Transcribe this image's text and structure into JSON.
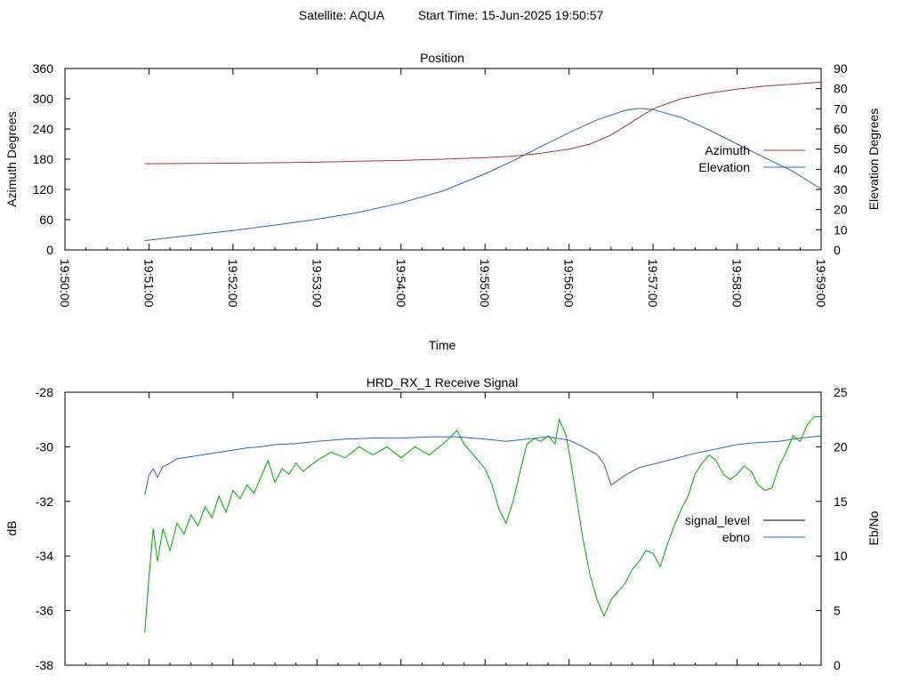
{
  "header": {
    "satellite_label": "Satellite: AQUA",
    "start_time_label": "Start Time: 15-Jun-2025 19:50:57"
  },
  "chart_data": [
    {
      "type": "line",
      "title": "Position",
      "xlabel": "Time",
      "ylabel": "Azimuth Degrees",
      "y2label": "Elevation Degrees",
      "x_ticks": [
        "19:50:00",
        "19:51:00",
        "19:52:00",
        "19:53:00",
        "19:54:00",
        "19:55:00",
        "19:56:00",
        "19:57:00",
        "19:58:00",
        "19:59:00"
      ],
      "xlim": [
        "19:50:00",
        "19:59:00"
      ],
      "ylim": [
        0,
        360
      ],
      "y_ticks": [
        0,
        60,
        120,
        180,
        240,
        300,
        360
      ],
      "y2lim": [
        0,
        90
      ],
      "y2_ticks": [
        0,
        10,
        20,
        30,
        40,
        50,
        60,
        70,
        80,
        90
      ],
      "legend_position": "right",
      "grid": false,
      "series": [
        {
          "name": "Azimuth",
          "axis": "y1",
          "color": "#a33b3b",
          "points": [
            [
              "19:50:57",
              171
            ],
            [
              "19:51:30",
              171.5
            ],
            [
              "19:52:00",
              172
            ],
            [
              "19:52:30",
              173
            ],
            [
              "19:53:00",
              174
            ],
            [
              "19:53:30",
              176
            ],
            [
              "19:54:00",
              177.5
            ],
            [
              "19:54:30",
              180
            ],
            [
              "19:55:00",
              183
            ],
            [
              "19:55:20",
              186
            ],
            [
              "19:55:40",
              192
            ],
            [
              "19:56:00",
              200
            ],
            [
              "19:56:15",
              210
            ],
            [
              "19:56:30",
              228
            ],
            [
              "19:56:45",
              254
            ],
            [
              "19:57:00",
              280
            ],
            [
              "19:57:20",
              300
            ],
            [
              "19:57:40",
              311
            ],
            [
              "19:58:00",
              319
            ],
            [
              "19:58:20",
              325
            ],
            [
              "19:58:40",
              329
            ],
            [
              "19:59:00",
              333
            ]
          ]
        },
        {
          "name": "Elevation",
          "axis": "y2",
          "color": "#3366b0",
          "points": [
            [
              "19:50:57",
              4.6
            ],
            [
              "19:51:30",
              7.3
            ],
            [
              "19:52:00",
              9.6
            ],
            [
              "19:52:30",
              12.3
            ],
            [
              "19:53:00",
              15.2
            ],
            [
              "19:53:30",
              18.6
            ],
            [
              "19:54:00",
              23.3
            ],
            [
              "19:54:30",
              29.3
            ],
            [
              "19:55:00",
              37.7
            ],
            [
              "19:55:20",
              44.2
            ],
            [
              "19:55:40",
              51.3
            ],
            [
              "19:56:00",
              58.2
            ],
            [
              "19:56:20",
              64.5
            ],
            [
              "19:56:40",
              69.2
            ],
            [
              "19:56:50",
              70.2
            ],
            [
              "19:57:00",
              69.6
            ],
            [
              "19:57:20",
              65.7
            ],
            [
              "19:57:40",
              59.5
            ],
            [
              "19:58:00",
              52.5
            ],
            [
              "19:58:20",
              45.6
            ],
            [
              "19:58:40",
              38.9
            ],
            [
              "19:59:00",
              30.2
            ]
          ]
        }
      ]
    },
    {
      "type": "line",
      "title": "HRD_RX_1 Receive Signal",
      "ylabel": "dB",
      "y2label": "Eb/No",
      "xlim": [
        "19:50:00",
        "19:59:00"
      ],
      "ylim": [
        -38,
        -28
      ],
      "y_ticks": [
        -38,
        -36,
        -34,
        -32,
        -30,
        -28
      ],
      "y2lim": [
        0,
        25
      ],
      "y2_ticks": [
        0,
        5,
        10,
        15,
        20,
        25
      ],
      "legend_position": "right",
      "grid": false,
      "series": [
        {
          "name": "signal_level",
          "axis": "y1",
          "color": "#00aa00",
          "legend_color": "#000000",
          "points": [
            [
              "19:50:57",
              -36.8
            ],
            [
              "19:51:00",
              -34.8
            ],
            [
              "19:51:03",
              -33.0
            ],
            [
              "19:51:06",
              -34.2
            ],
            [
              "19:51:10",
              -33.0
            ],
            [
              "19:51:15",
              -33.8
            ],
            [
              "19:51:20",
              -32.8
            ],
            [
              "19:51:25",
              -33.2
            ],
            [
              "19:51:30",
              -32.5
            ],
            [
              "19:51:35",
              -32.9
            ],
            [
              "19:51:40",
              -32.2
            ],
            [
              "19:51:45",
              -32.6
            ],
            [
              "19:51:50",
              -31.8
            ],
            [
              "19:51:55",
              -32.4
            ],
            [
              "19:52:00",
              -31.6
            ],
            [
              "19:52:05",
              -31.9
            ],
            [
              "19:52:10",
              -31.4
            ],
            [
              "19:52:15",
              -31.7
            ],
            [
              "19:52:20",
              -31.1
            ],
            [
              "19:52:25",
              -30.5
            ],
            [
              "19:52:30",
              -31.3
            ],
            [
              "19:52:35",
              -30.8
            ],
            [
              "19:52:40",
              -31.0
            ],
            [
              "19:52:45",
              -30.6
            ],
            [
              "19:52:50",
              -30.9
            ],
            [
              "19:53:00",
              -30.5
            ],
            [
              "19:53:10",
              -30.2
            ],
            [
              "19:53:20",
              -30.4
            ],
            [
              "19:53:30",
              -30.0
            ],
            [
              "19:53:40",
              -30.3
            ],
            [
              "19:53:50",
              -30.0
            ],
            [
              "19:54:00",
              -30.4
            ],
            [
              "19:54:10",
              -30.0
            ],
            [
              "19:54:20",
              -30.3
            ],
            [
              "19:54:30",
              -29.9
            ],
            [
              "19:54:40",
              -29.4
            ],
            [
              "19:54:45",
              -29.9
            ],
            [
              "19:54:50",
              -30.2
            ],
            [
              "19:55:00",
              -30.8
            ],
            [
              "19:55:05",
              -31.4
            ],
            [
              "19:55:10",
              -32.3
            ],
            [
              "19:55:15",
              -32.8
            ],
            [
              "19:55:20",
              -32.0
            ],
            [
              "19:55:25",
              -30.9
            ],
            [
              "19:55:30",
              -29.9
            ],
            [
              "19:55:35",
              -29.7
            ],
            [
              "19:55:40",
              -29.8
            ],
            [
              "19:55:45",
              -29.6
            ],
            [
              "19:55:50",
              -29.9
            ],
            [
              "19:55:53",
              -29.0
            ],
            [
              "19:55:58",
              -29.6
            ],
            [
              "19:56:02",
              -30.8
            ],
            [
              "19:56:06",
              -32.1
            ],
            [
              "19:56:10",
              -33.4
            ],
            [
              "19:56:15",
              -34.7
            ],
            [
              "19:56:20",
              -35.6
            ],
            [
              "19:56:25",
              -36.2
            ],
            [
              "19:56:30",
              -35.6
            ],
            [
              "19:56:35",
              -35.3
            ],
            [
              "19:56:40",
              -35.0
            ],
            [
              "19:56:45",
              -34.5
            ],
            [
              "19:56:50",
              -34.2
            ],
            [
              "19:56:55",
              -33.8
            ],
            [
              "19:57:00",
              -33.9
            ],
            [
              "19:57:05",
              -34.4
            ],
            [
              "19:57:10",
              -33.6
            ],
            [
              "19:57:15",
              -32.9
            ],
            [
              "19:57:20",
              -32.3
            ],
            [
              "19:57:25",
              -31.8
            ],
            [
              "19:57:30",
              -31.0
            ],
            [
              "19:57:35",
              -30.6
            ],
            [
              "19:57:40",
              -30.3
            ],
            [
              "19:57:45",
              -30.5
            ],
            [
              "19:57:50",
              -31.0
            ],
            [
              "19:57:55",
              -31.2
            ],
            [
              "19:58:00",
              -31.0
            ],
            [
              "19:58:05",
              -30.7
            ],
            [
              "19:58:10",
              -30.9
            ],
            [
              "19:58:15",
              -31.4
            ],
            [
              "19:58:20",
              -31.6
            ],
            [
              "19:58:25",
              -31.5
            ],
            [
              "19:58:30",
              -30.7
            ],
            [
              "19:58:35",
              -30.2
            ],
            [
              "19:58:40",
              -29.6
            ],
            [
              "19:58:45",
              -29.8
            ],
            [
              "19:58:50",
              -29.2
            ],
            [
              "19:58:55",
              -28.9
            ],
            [
              "19:59:00",
              -28.9
            ]
          ]
        },
        {
          "name": "ebno",
          "axis": "y2",
          "color": "#3366b0",
          "points": [
            [
              "19:50:57",
              15.6
            ],
            [
              "19:51:00",
              17.4
            ],
            [
              "19:51:03",
              18.0
            ],
            [
              "19:51:06",
              17.2
            ],
            [
              "19:51:10",
              18.2
            ],
            [
              "19:51:15",
              18.5
            ],
            [
              "19:51:20",
              18.9
            ],
            [
              "19:51:30",
              19.1
            ],
            [
              "19:51:40",
              19.3
            ],
            [
              "19:51:50",
              19.5
            ],
            [
              "19:52:00",
              19.7
            ],
            [
              "19:52:10",
              19.9
            ],
            [
              "19:52:20",
              20.0
            ],
            [
              "19:52:30",
              20.2
            ],
            [
              "19:52:45",
              20.3
            ],
            [
              "19:53:00",
              20.5
            ],
            [
              "19:53:20",
              20.7
            ],
            [
              "19:53:40",
              20.8
            ],
            [
              "19:54:00",
              20.8
            ],
            [
              "19:54:20",
              20.9
            ],
            [
              "19:54:40",
              20.9
            ],
            [
              "19:55:00",
              20.7
            ],
            [
              "19:55:15",
              20.5
            ],
            [
              "19:55:30",
              20.7
            ],
            [
              "19:55:45",
              20.9
            ],
            [
              "19:56:00",
              20.6
            ],
            [
              "19:56:10",
              20.0
            ],
            [
              "19:56:20",
              19.3
            ],
            [
              "19:56:25",
              18.4
            ],
            [
              "19:56:30",
              16.5
            ],
            [
              "19:56:40",
              17.4
            ],
            [
              "19:56:50",
              18.1
            ],
            [
              "19:57:00",
              18.4
            ],
            [
              "19:57:15",
              18.9
            ],
            [
              "19:57:30",
              19.4
            ],
            [
              "19:57:45",
              19.8
            ],
            [
              "19:58:00",
              20.2
            ],
            [
              "19:58:15",
              20.4
            ],
            [
              "19:58:30",
              20.5
            ],
            [
              "19:58:45",
              20.8
            ],
            [
              "19:59:00",
              21.0
            ]
          ]
        }
      ]
    }
  ]
}
